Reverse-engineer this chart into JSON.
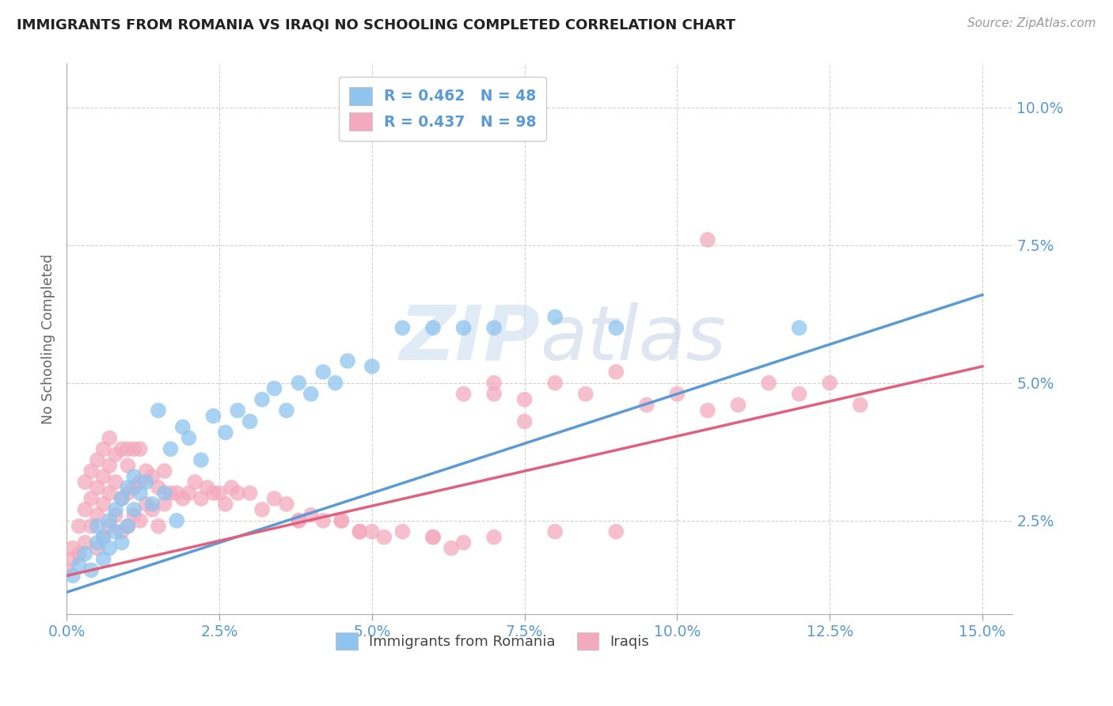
{
  "title": "IMMIGRANTS FROM ROMANIA VS IRAQI NO SCHOOLING COMPLETED CORRELATION CHART",
  "source_text": "Source: ZipAtlas.com",
  "ylabel": "No Schooling Completed",
  "legend_labels": [
    "Immigrants from Romania",
    "Iraqis"
  ],
  "legend_r": [
    "R = 0.462",
    "R = 0.437"
  ],
  "legend_n": [
    "N = 48",
    "N = 98"
  ],
  "blue_color": "#8EC4EE",
  "pink_color": "#F4AABE",
  "blue_line_color": "#5B9BD5",
  "pink_line_color": "#E06080",
  "axis_label_color": "#5B9BD5",
  "tick_color": "#5B9BD5",
  "title_color": "#222222",
  "watermark_color": "#C8DCF0",
  "xlim": [
    0.0,
    0.155
  ],
  "ylim": [
    0.008,
    0.108
  ],
  "xticks": [
    0.0,
    0.025,
    0.05,
    0.075,
    0.1,
    0.125,
    0.15
  ],
  "yticks": [
    0.025,
    0.05,
    0.075,
    0.1
  ],
  "blue_trend_x": [
    0.0,
    0.15
  ],
  "blue_trend_y": [
    0.012,
    0.066
  ],
  "pink_trend_x": [
    0.0,
    0.15
  ],
  "pink_trend_y": [
    0.015,
    0.053
  ],
  "blue_x": [
    0.001,
    0.002,
    0.003,
    0.004,
    0.005,
    0.005,
    0.006,
    0.006,
    0.007,
    0.007,
    0.008,
    0.008,
    0.009,
    0.009,
    0.01,
    0.01,
    0.011,
    0.011,
    0.012,
    0.013,
    0.014,
    0.015,
    0.016,
    0.017,
    0.018,
    0.019,
    0.02,
    0.022,
    0.024,
    0.026,
    0.028,
    0.03,
    0.032,
    0.034,
    0.036,
    0.038,
    0.04,
    0.042,
    0.044,
    0.046,
    0.05,
    0.055,
    0.06,
    0.065,
    0.07,
    0.08,
    0.09,
    0.12
  ],
  "blue_y": [
    0.015,
    0.017,
    0.019,
    0.016,
    0.021,
    0.024,
    0.018,
    0.022,
    0.02,
    0.025,
    0.023,
    0.027,
    0.021,
    0.029,
    0.024,
    0.031,
    0.027,
    0.033,
    0.03,
    0.032,
    0.028,
    0.045,
    0.03,
    0.038,
    0.025,
    0.042,
    0.04,
    0.036,
    0.044,
    0.041,
    0.045,
    0.043,
    0.047,
    0.049,
    0.045,
    0.05,
    0.048,
    0.052,
    0.05,
    0.054,
    0.053,
    0.06,
    0.06,
    0.06,
    0.06,
    0.062,
    0.06,
    0.06
  ],
  "pink_x": [
    0.0,
    0.001,
    0.001,
    0.002,
    0.002,
    0.003,
    0.003,
    0.003,
    0.004,
    0.004,
    0.004,
    0.005,
    0.005,
    0.005,
    0.005,
    0.006,
    0.006,
    0.006,
    0.006,
    0.007,
    0.007,
    0.007,
    0.007,
    0.008,
    0.008,
    0.008,
    0.009,
    0.009,
    0.009,
    0.01,
    0.01,
    0.01,
    0.01,
    0.011,
    0.011,
    0.011,
    0.012,
    0.012,
    0.012,
    0.013,
    0.013,
    0.014,
    0.014,
    0.015,
    0.015,
    0.016,
    0.016,
    0.017,
    0.018,
    0.019,
    0.02,
    0.021,
    0.022,
    0.023,
    0.024,
    0.025,
    0.026,
    0.027,
    0.028,
    0.03,
    0.032,
    0.034,
    0.036,
    0.038,
    0.04,
    0.042,
    0.045,
    0.048,
    0.05,
    0.055,
    0.06,
    0.063,
    0.065,
    0.07,
    0.075,
    0.08,
    0.085,
    0.09,
    0.095,
    0.1,
    0.105,
    0.11,
    0.115,
    0.12,
    0.125,
    0.13,
    0.105,
    0.065,
    0.07,
    0.075,
    0.038,
    0.045,
    0.048,
    0.052,
    0.06,
    0.07,
    0.08,
    0.09
  ],
  "pink_y": [
    0.016,
    0.018,
    0.02,
    0.019,
    0.024,
    0.021,
    0.027,
    0.032,
    0.024,
    0.029,
    0.034,
    0.02,
    0.026,
    0.031,
    0.036,
    0.022,
    0.028,
    0.033,
    0.038,
    0.024,
    0.03,
    0.035,
    0.04,
    0.026,
    0.032,
    0.037,
    0.023,
    0.029,
    0.038,
    0.024,
    0.03,
    0.035,
    0.038,
    0.026,
    0.031,
    0.038,
    0.025,
    0.032,
    0.038,
    0.028,
    0.034,
    0.027,
    0.033,
    0.024,
    0.031,
    0.028,
    0.034,
    0.03,
    0.03,
    0.029,
    0.03,
    0.032,
    0.029,
    0.031,
    0.03,
    0.03,
    0.028,
    0.031,
    0.03,
    0.03,
    0.027,
    0.029,
    0.028,
    0.025,
    0.026,
    0.025,
    0.025,
    0.023,
    0.023,
    0.023,
    0.022,
    0.02,
    0.021,
    0.048,
    0.047,
    0.05,
    0.048,
    0.052,
    0.046,
    0.048,
    0.045,
    0.046,
    0.05,
    0.048,
    0.05,
    0.046,
    0.076,
    0.048,
    0.05,
    0.043,
    0.025,
    0.025,
    0.023,
    0.022,
    0.022,
    0.022,
    0.023,
    0.023
  ]
}
